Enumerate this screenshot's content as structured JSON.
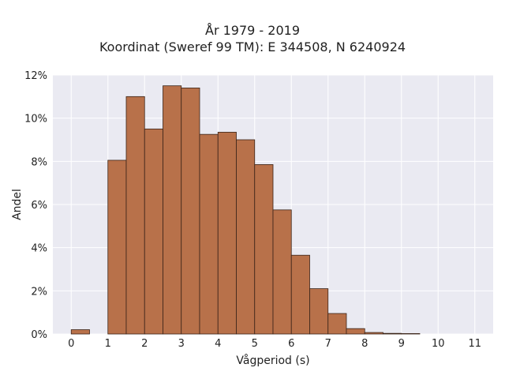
{
  "chart_data": {
    "type": "bar",
    "title_lines": [
      "År 1979 - 2019",
      "Koordinat (Sweref 99 TM): E 344508, N 6240924"
    ],
    "xlabel": "Vågperiod (s)",
    "ylabel": "Andel",
    "xlim": [
      -0.5,
      11.5
    ],
    "ylim": [
      0,
      12
    ],
    "x_ticks": [
      0,
      1,
      2,
      3,
      4,
      5,
      6,
      7,
      8,
      9,
      10,
      11
    ],
    "x_tick_labels": [
      "0",
      "1",
      "2",
      "3",
      "4",
      "5",
      "6",
      "7",
      "8",
      "9",
      "10",
      "11"
    ],
    "y_ticks": [
      0,
      2,
      4,
      6,
      8,
      10,
      12
    ],
    "y_tick_labels": [
      "0%",
      "2%",
      "4%",
      "6%",
      "8%",
      "10%",
      "12%"
    ],
    "grid": true,
    "bin_width": 0.5,
    "bins": [
      {
        "x0": 0.0,
        "value": 0.2
      },
      {
        "x0": 0.5,
        "value": 0.0
      },
      {
        "x0": 1.0,
        "value": 8.05
      },
      {
        "x0": 1.5,
        "value": 11.0
      },
      {
        "x0": 2.0,
        "value": 9.5
      },
      {
        "x0": 2.5,
        "value": 11.5
      },
      {
        "x0": 3.0,
        "value": 11.4
      },
      {
        "x0": 3.5,
        "value": 9.25
      },
      {
        "x0": 4.0,
        "value": 9.35
      },
      {
        "x0": 4.5,
        "value": 9.0
      },
      {
        "x0": 5.0,
        "value": 7.85
      },
      {
        "x0": 5.5,
        "value": 5.75
      },
      {
        "x0": 6.0,
        "value": 3.65
      },
      {
        "x0": 6.5,
        "value": 2.1
      },
      {
        "x0": 7.0,
        "value": 0.95
      },
      {
        "x0": 7.5,
        "value": 0.25
      },
      {
        "x0": 8.0,
        "value": 0.07
      },
      {
        "x0": 8.5,
        "value": 0.03
      },
      {
        "x0": 9.0,
        "value": 0.02
      }
    ],
    "colors": {
      "bar_fill": "#b8714a",
      "bar_edge": "#3a2418",
      "plot_background": "#eaeaf2",
      "grid": "#ffffff"
    }
  }
}
